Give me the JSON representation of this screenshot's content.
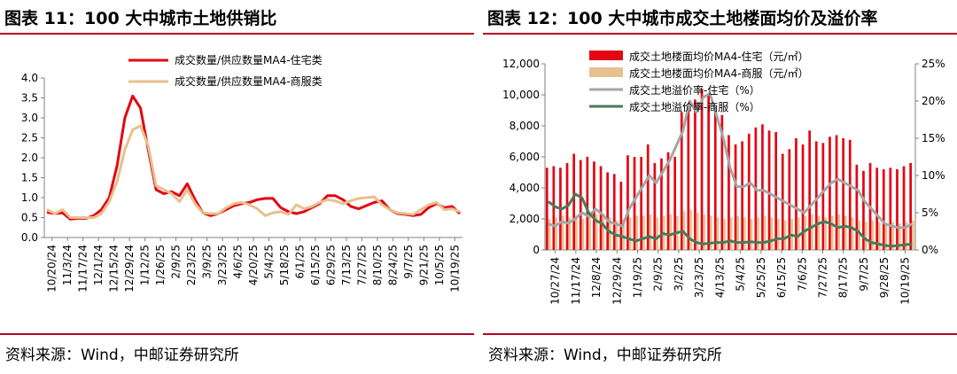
{
  "panels": {
    "left": {
      "title": "图表 11：100 大中城市土地供销比",
      "source": "资料来源：Wind，中邮证券研究所"
    },
    "right": {
      "title": "图表 12：100 大中城市成交土地楼面均价及溢价率",
      "source": "资料来源：Wind，中邮证券研究所"
    }
  },
  "colors": {
    "red": "#e30613",
    "tan": "#e8c08e",
    "gray": "#a6a6a6",
    "green": "#4a7a5a",
    "rule": "#b8001f"
  },
  "chart_data": [
    {
      "type": "line",
      "ylim": [
        0,
        4
      ],
      "yticks": [
        "0.0",
        "0.5",
        "1.0",
        "1.5",
        "2.0",
        "2.5",
        "3.0",
        "3.5",
        "4.0"
      ],
      "xtick_labels": [
        "10/20/24",
        "11/3/24",
        "11/17/24",
        "12/1/24",
        "12/15/24",
        "12/29/24",
        "1/12/25",
        "1/26/25",
        "2/9/25",
        "2/23/25",
        "3/9/25",
        "3/23/25",
        "4/6/25",
        "4/20/25",
        "5/4/25",
        "5/18/25",
        "6/1/25",
        "6/15/25",
        "6/29/25",
        "7/13/25",
        "7/27/25",
        "8/10/25",
        "8/24/25",
        "9/7/25",
        "9/21/25",
        "10/5/25",
        "10/19/25"
      ],
      "series": [
        {
          "name": "成交数量/供应数量MA4-住宅类",
          "color": "#e30613",
          "values": [
            0.63,
            0.6,
            0.62,
            0.46,
            0.48,
            0.48,
            0.55,
            0.7,
            1.0,
            1.8,
            3.0,
            3.55,
            3.25,
            2.2,
            1.2,
            1.1,
            1.15,
            1.05,
            1.35,
            0.95,
            0.62,
            0.55,
            0.6,
            0.7,
            0.8,
            0.85,
            0.88,
            0.95,
            0.98,
            0.98,
            0.75,
            0.65,
            0.6,
            0.65,
            0.75,
            0.85,
            1.05,
            1.05,
            0.95,
            0.78,
            0.72,
            0.8,
            0.88,
            0.92,
            0.7,
            0.6,
            0.58,
            0.55,
            0.58,
            0.75,
            0.85,
            0.75,
            0.78,
            0.6
          ]
        },
        {
          "name": "成交数量/供应数量MA4-商服类",
          "color": "#e8c08e",
          "values": [
            0.7,
            0.6,
            0.7,
            0.5,
            0.5,
            0.5,
            0.5,
            0.6,
            0.9,
            1.4,
            2.2,
            2.7,
            2.8,
            2.3,
            1.3,
            1.2,
            1.1,
            0.9,
            1.2,
            0.85,
            0.62,
            0.6,
            0.6,
            0.75,
            0.85,
            0.88,
            0.82,
            0.72,
            0.55,
            0.62,
            0.65,
            0.58,
            0.82,
            0.72,
            0.78,
            0.88,
            0.95,
            0.92,
            0.85,
            0.92,
            0.98,
            1.0,
            1.02,
            0.82,
            0.7,
            0.62,
            0.6,
            0.58,
            0.7,
            0.82,
            0.88,
            0.7,
            0.72,
            0.65
          ]
        }
      ]
    },
    {
      "type": "bar+line",
      "ylim_left": [
        0,
        12000
      ],
      "ylim_right": [
        0,
        25
      ],
      "yticks_left": [
        "0",
        "2,000",
        "4,000",
        "6,000",
        "8,000",
        "10,000",
        "12,000"
      ],
      "yticks_right": [
        "0%",
        "5%",
        "10%",
        "15%",
        "20%",
        "25%"
      ],
      "xtick_labels": [
        "10/27/24",
        "11/17/24",
        "12/8/24",
        "12/29/24",
        "1/19/25",
        "2/9/25",
        "3/2/25",
        "3/23/25",
        "4/13/25",
        "5/4/25",
        "5/25/25",
        "6/15/25",
        "7/6/25",
        "7/27/25",
        "8/17/25",
        "9/7/25",
        "9/28/25",
        "10/19/25"
      ],
      "bar_series": [
        {
          "name": "成交土地楼面均价MA4-住宅（元/㎡）",
          "color": "#e30613",
          "values": [
            5300,
            5400,
            5300,
            5600,
            6200,
            5800,
            6000,
            5700,
            5400,
            5000,
            4900,
            4400,
            6100,
            6000,
            6000,
            6800,
            5600,
            5900,
            6300,
            6000,
            8900,
            9200,
            9700,
            10400,
            10000,
            9000,
            8700,
            7400,
            6800,
            7000,
            7500,
            7900,
            8100,
            7700,
            7600,
            6200,
            6500,
            7200,
            6800,
            7700,
            7000,
            6900,
            7300,
            7400,
            7200,
            7100,
            5500,
            5100,
            5600,
            5300,
            5200,
            5300,
            5200,
            5400,
            5600
          ]
        },
        {
          "name": "成交土地楼面均价MA4-商服（元/㎡）",
          "color": "#e8c08e",
          "values": [
            2000,
            2100,
            2200,
            2100,
            2200,
            2000,
            2200,
            2300,
            2200,
            2100,
            1900,
            2000,
            2100,
            2200,
            2200,
            2300,
            2100,
            2200,
            2300,
            2200,
            2500,
            2600,
            2400,
            2300,
            2200,
            2100,
            2000,
            2100,
            2200,
            2100,
            2000,
            2100,
            2200,
            2100,
            2000,
            1900,
            2000,
            2100,
            2200,
            2300,
            2200,
            2100,
            2200,
            2300,
            2200,
            2100,
            1900,
            1800,
            1900,
            1800,
            1700,
            1800,
            1700,
            1800,
            1900
          ]
        }
      ],
      "line_series": [
        {
          "name": "成交土地溢价率-住宅（%）",
          "color": "#a6a6a6",
          "values": [
            3.5,
            3.2,
            3.8,
            3.6,
            4.2,
            5.0,
            4.5,
            5.5,
            4.8,
            3.8,
            3.5,
            3.2,
            5.5,
            7.0,
            8.5,
            10.0,
            9.0,
            10.5,
            12.0,
            14.0,
            16.0,
            20.0,
            18.5,
            20.5,
            21.0,
            18.0,
            15.0,
            11.0,
            8.5,
            8.5,
            9.0,
            8.0,
            8.0,
            7.5,
            7.0,
            6.5,
            6.0,
            5.5,
            5.0,
            6.0,
            7.0,
            8.0,
            9.0,
            9.5,
            9.0,
            8.5,
            8.0,
            6.5,
            5.5,
            4.5,
            3.5,
            3.2,
            3.0,
            3.0,
            3.5
          ]
        },
        {
          "name": "成交土地溢价率-商服（%）",
          "color": "#4a7a5a",
          "values": [
            6.5,
            5.8,
            5.5,
            6.0,
            7.5,
            7.0,
            5.0,
            4.0,
            3.5,
            2.5,
            2.0,
            1.8,
            1.5,
            1.2,
            1.5,
            1.8,
            1.5,
            2.2,
            2.0,
            2.3,
            2.5,
            1.5,
            1.0,
            0.8,
            0.9,
            1.0,
            1.0,
            1.2,
            1.0,
            1.0,
            1.1,
            1.0,
            1.0,
            1.2,
            1.5,
            1.5,
            2.0,
            1.8,
            2.5,
            3.0,
            3.5,
            3.8,
            3.5,
            3.0,
            3.2,
            3.0,
            2.5,
            1.5,
            1.0,
            0.8,
            0.6,
            0.5,
            0.6,
            0.7,
            0.8
          ]
        }
      ]
    }
  ]
}
